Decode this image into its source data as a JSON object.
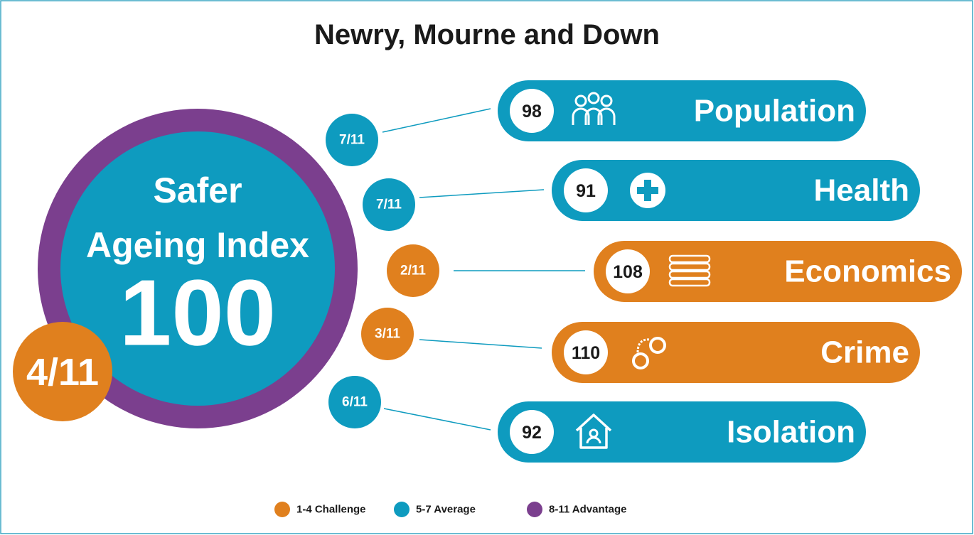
{
  "title": "Newry, Mourne and Down",
  "index": {
    "label_lines": [
      "Safer",
      "Ageing Index"
    ],
    "score": 100,
    "rank": "4/11",
    "ring_color": "#7b3f8e",
    "fill_color": "#0e9bbf",
    "rank_color": "#e0801e"
  },
  "domains": [
    {
      "name": "Population",
      "score": 98,
      "rank": "7/11",
      "color": "#0e9bbf"
    },
    {
      "name": "Health",
      "score": 91,
      "rank": "7/11",
      "color": "#0e9bbf"
    },
    {
      "name": "Economics",
      "score": 108,
      "rank": "2/11",
      "color": "#e0801e"
    },
    {
      "name": "Crime",
      "score": 110,
      "rank": "3/11",
      "color": "#e0801e"
    },
    {
      "name": "Isolation",
      "score": 92,
      "rank": "6/11",
      "color": "#0e9bbf"
    }
  ],
  "legend": [
    {
      "label": "1-4 Challenge",
      "color": "#e0801e"
    },
    {
      "label": "5-7 Average",
      "color": "#0e9bbf"
    },
    {
      "label": "8-11 Advantage",
      "color": "#7b3f8e"
    }
  ]
}
